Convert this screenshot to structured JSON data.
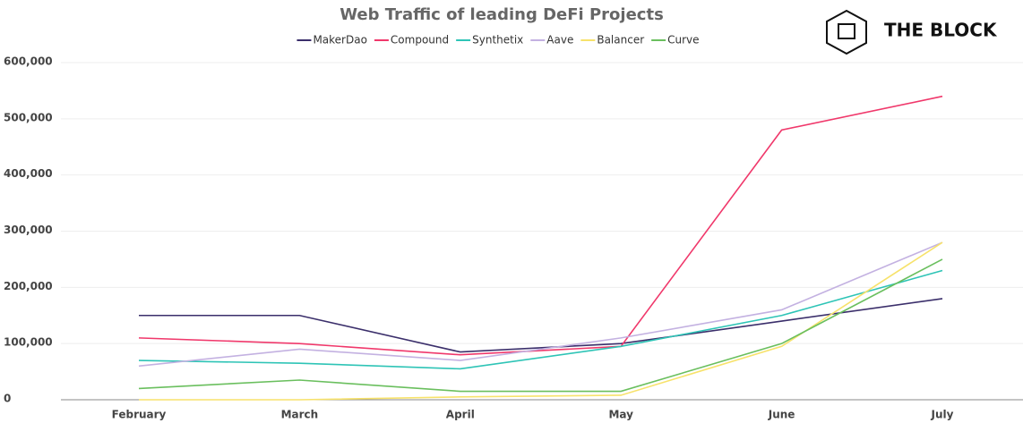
{
  "logo": "THE BLOCK",
  "chart_data": {
    "type": "line",
    "title": "Web Traffic of leading DeFi Projects",
    "categories": [
      "February",
      "March",
      "April",
      "May",
      "June",
      "July"
    ],
    "series": [
      {
        "name": "MakerDao",
        "color": "#3b2f6b",
        "values": [
          150000,
          150000,
          85000,
          100000,
          140000,
          180000
        ]
      },
      {
        "name": "Compound",
        "color": "#f0386b",
        "values": [
          110000,
          100000,
          80000,
          95000,
          480000,
          540000
        ]
      },
      {
        "name": "Synthetix",
        "color": "#2ec4b6",
        "values": [
          70000,
          65000,
          55000,
          95000,
          150000,
          230000
        ]
      },
      {
        "name": "Aave",
        "color": "#c3b1e1",
        "values": [
          60000,
          90000,
          70000,
          110000,
          160000,
          280000
        ]
      },
      {
        "name": "Balancer",
        "color": "#f7e26b",
        "values": [
          0,
          0,
          5000,
          8000,
          95000,
          280000
        ]
      },
      {
        "name": "Curve",
        "color": "#6abf5e",
        "values": [
          20000,
          35000,
          15000,
          15000,
          100000,
          250000
        ]
      }
    ],
    "ylim": [
      0,
      600000
    ],
    "yticks": [
      0,
      {
        "value": 100000,
        "label": "100,000"
      },
      {
        "value": 200000,
        "label": "200,000"
      },
      {
        "value": 300000,
        "label": "300,000"
      },
      {
        "value": 400000,
        "label": "400,000"
      },
      {
        "value": 500000,
        "label": "500,000"
      },
      {
        "value": 600000,
        "label": "600,000"
      }
    ],
    "grid": true,
    "legend": "top"
  }
}
